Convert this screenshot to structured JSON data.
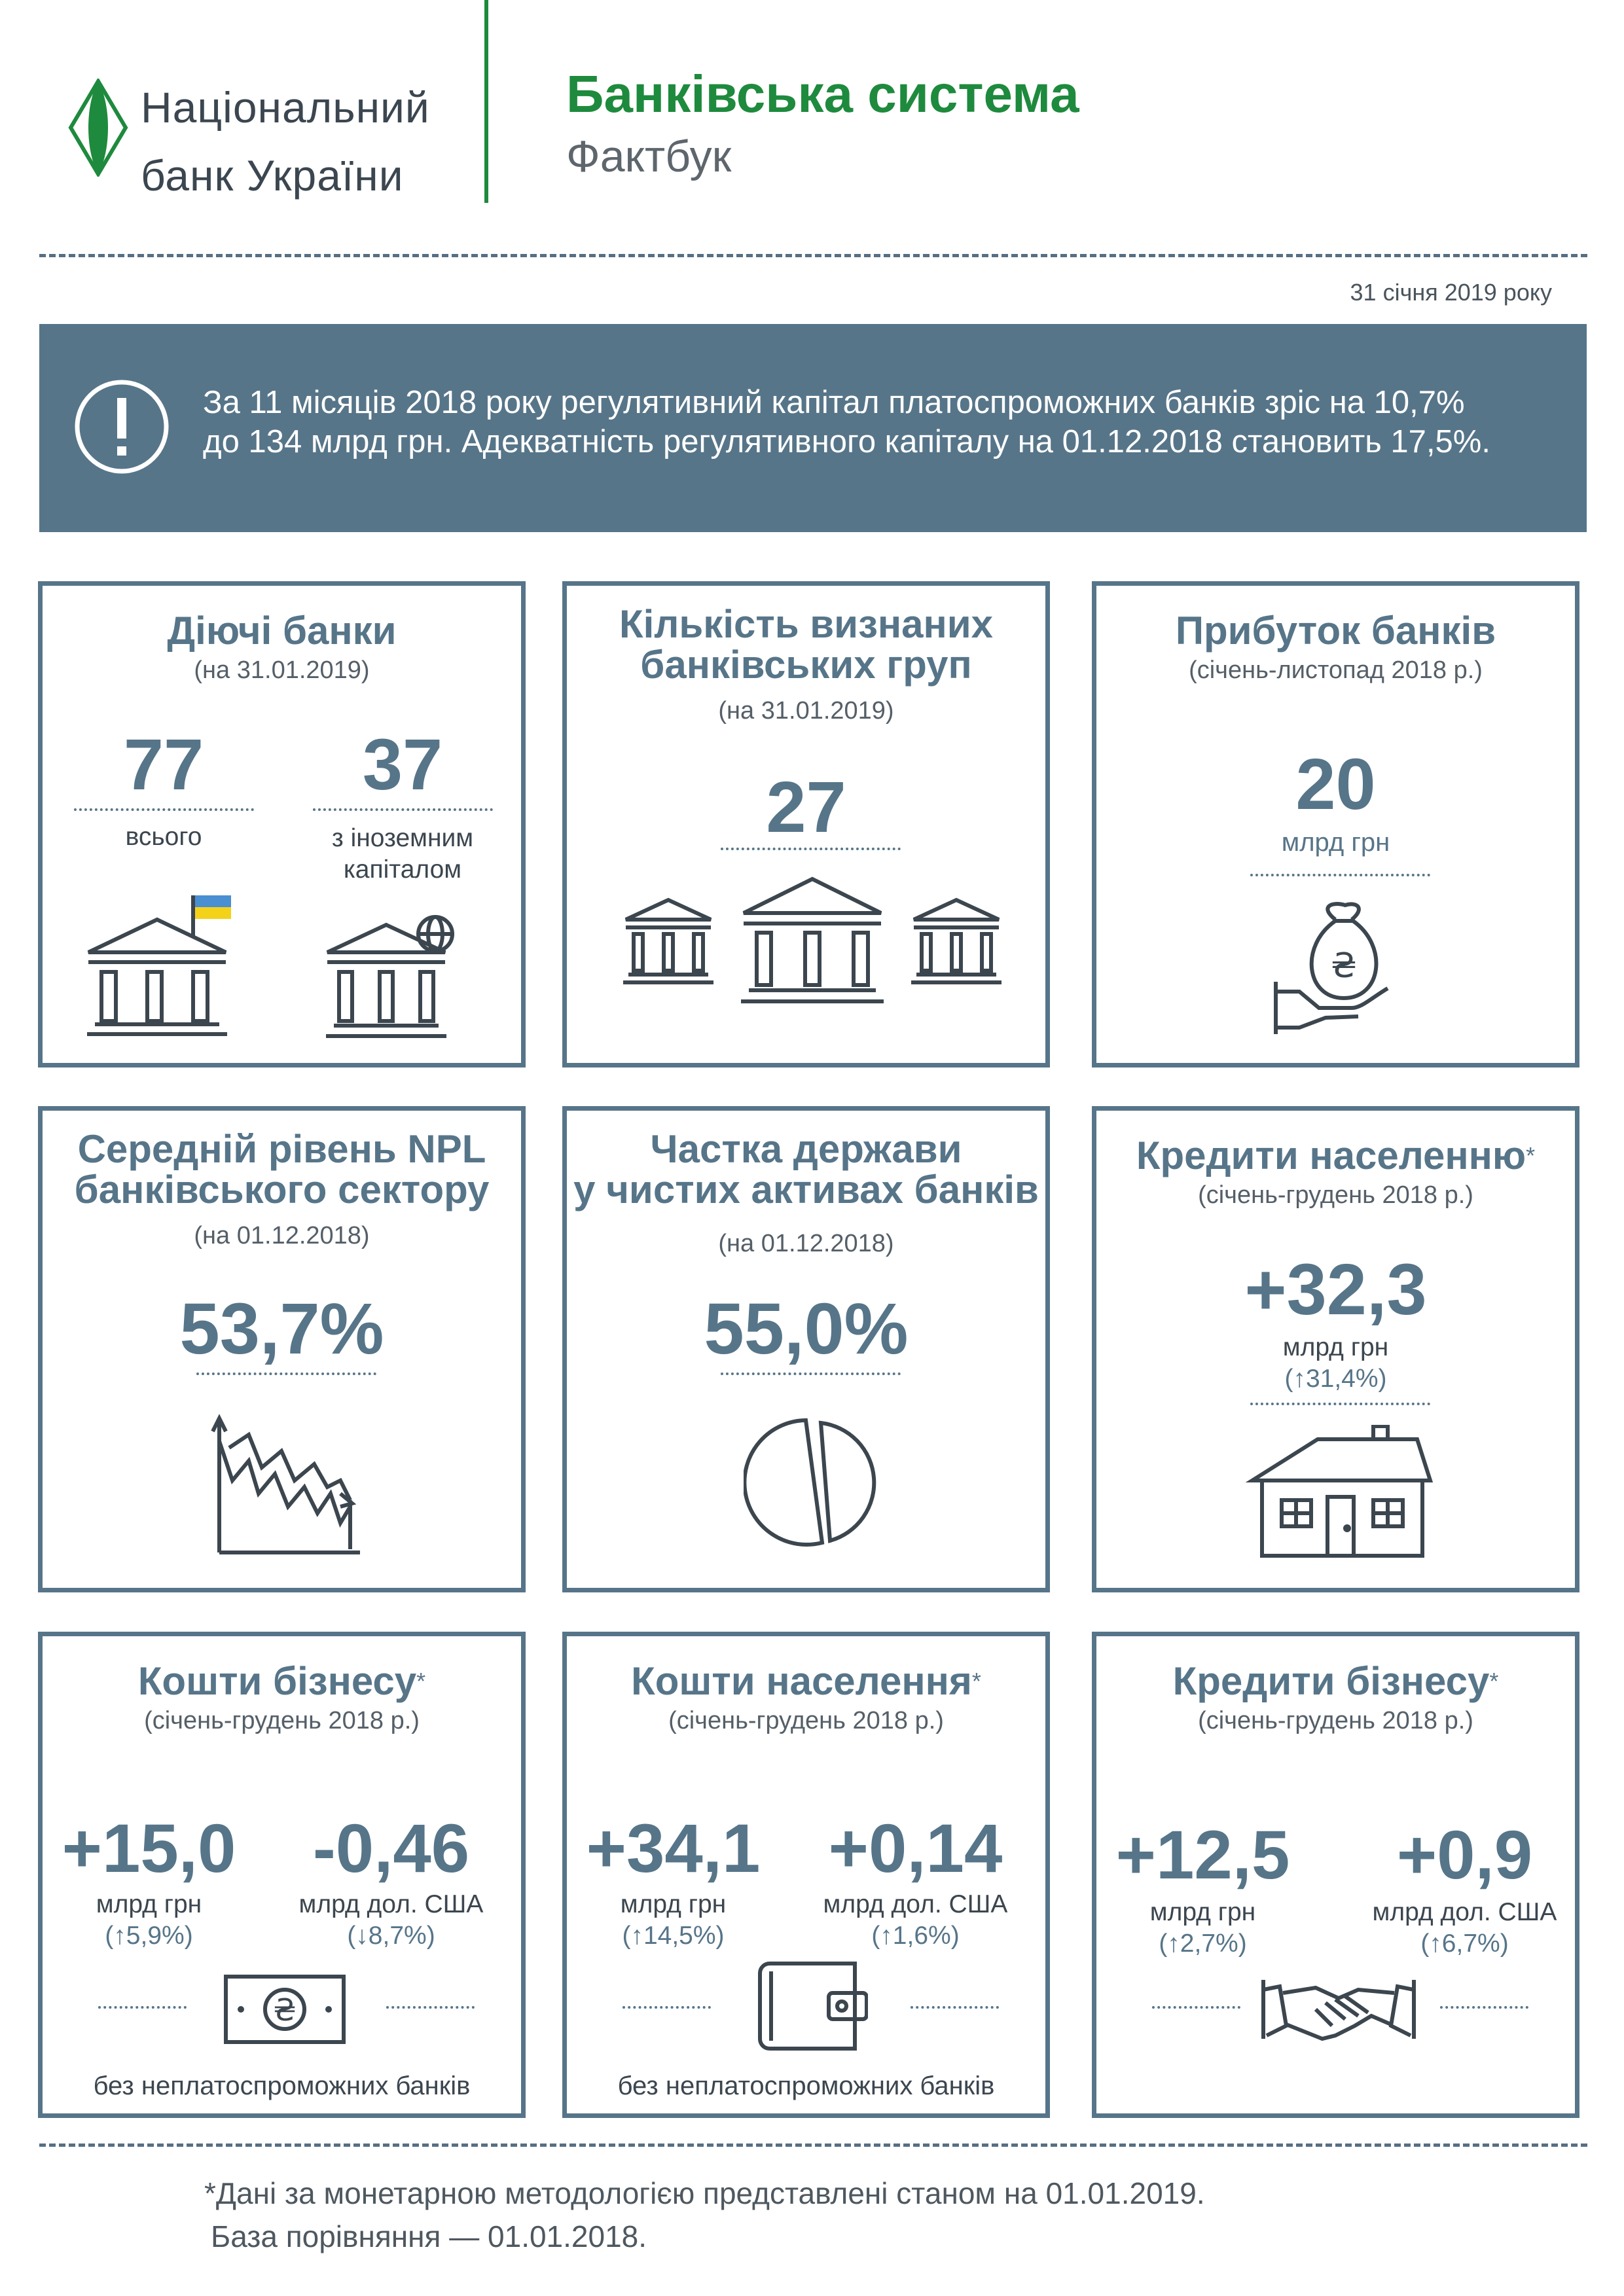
{
  "header": {
    "org_line1": "Національний",
    "org_line2": "банк України",
    "title": "Банківська система",
    "subtitle": "Фактбук",
    "date": "31 січня 2019 року"
  },
  "banner": {
    "line1": "За 11 місяців 2018 року регулятивний капітал платоспроможних банків зріс на 10,7%",
    "line2": "до 134 млрд грн. Адекватність регулятивного капіталу на 01.12.2018 становить 17,5%."
  },
  "cards": {
    "active_banks": {
      "title": "Діючі банки",
      "period": "(на 31.01.2019)",
      "total_value": "77",
      "total_label": "всього",
      "foreign_value": "37",
      "foreign_label1": "з іноземним",
      "foreign_label2": "капіталом"
    },
    "bank_groups": {
      "title1": "Кількість визнаних",
      "title2": "банківських груп",
      "period": "(на 31.01.2019)",
      "value": "27"
    },
    "profit": {
      "title": "Прибуток банків",
      "period": "(січень-листопад 2018 р.)",
      "value": "20",
      "unit": "млрд грн"
    },
    "npl": {
      "title1": "Середній рівень NPL",
      "title2": "банківського сектору",
      "period": "(на 01.12.2018)",
      "value": "53,7%"
    },
    "state_share": {
      "title1": "Частка держави",
      "title2": "у чистих активах банків",
      "period": "(на 01.12.2018)",
      "value": "55,0%"
    },
    "household_loans": {
      "title": "Кредити населенню",
      "star": "*",
      "period": "(січень-грудень 2018 р.)",
      "value": "+32,3",
      "unit": "млрд грн",
      "change": "(↑31,4%)"
    },
    "business_funds": {
      "title": "Кошти бізнесу",
      "star": "*",
      "period": "(січень-грудень 2018 р.)",
      "uah_value": "+15,0",
      "uah_unit": "млрд грн",
      "uah_change": "(↑5,9%)",
      "usd_value": "-0,46",
      "usd_unit": "млрд дол. США",
      "usd_change": "(↓8,7%)",
      "note": "без неплатоспроможних банків"
    },
    "household_funds": {
      "title": "Кошти населення",
      "star": "*",
      "period": "(січень-грудень 2018 р.)",
      "uah_value": "+34,1",
      "uah_unit": "млрд грн",
      "uah_change": "(↑14,5%)",
      "usd_value": "+0,14",
      "usd_unit": "млрд дол. США",
      "usd_change": "(↑1,6%)",
      "note": "без неплатоспроможних банків"
    },
    "business_loans": {
      "title": "Кредити бізнесу",
      "star": "*",
      "period": "(січень-грудень 2018 р.)",
      "uah_value": "+12,5",
      "uah_unit": "млрд грн",
      "uah_change": "(↑2,7%)",
      "usd_value": "+0,9",
      "usd_unit": "млрд дол. США",
      "usd_change": "(↑6,7%)"
    }
  },
  "footnote": {
    "star": "*",
    "line1": "Дані за монетарною методологією представлені станом на 01.01.2019.",
    "line2": "База порівняння — 01.01.2018."
  },
  "icons": [
    "nbu-logo-icon",
    "exclamation-icon",
    "bank-flag-icon",
    "bank-globe-icon",
    "bank-group-icon",
    "money-bag-hand-icon",
    "decline-chart-icon",
    "pie-chart-icon",
    "house-icon",
    "banknote-icon",
    "wallet-icon",
    "handshake-icon"
  ],
  "colors": {
    "accent_green": "#1e8a3d",
    "primary_blue": "#577589"
  }
}
